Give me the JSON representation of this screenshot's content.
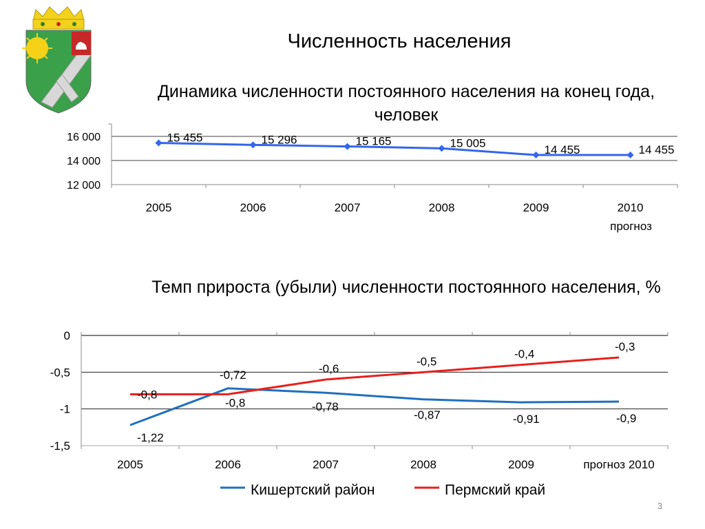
{
  "page": {
    "title": "Численность населения",
    "slide_number": "3"
  },
  "colors": {
    "line_population": "#3366ee",
    "series_district": "#1f6fbf",
    "series_region": "#e8201c",
    "gridline": "#000000",
    "axis": "#888888"
  },
  "chart_data": [
    {
      "type": "line",
      "title": "Динамика численности постоянного населения на конец года, человек",
      "categories": [
        "2005",
        "2006",
        "2007",
        "2008",
        "2009",
        "2010"
      ],
      "category_sublabels": [
        "",
        "",
        "",
        "",
        "",
        "прогноз"
      ],
      "values": [
        15455,
        15296,
        15165,
        15005,
        14455,
        14455
      ],
      "data_labels": [
        "15 455",
        "15 296",
        "15 165",
        "15 005",
        "14 455",
        "14 455"
      ],
      "y_ticks": [
        "16 000",
        "14 000",
        "12 000"
      ],
      "y_tick_values": [
        16000,
        14000,
        12000
      ],
      "ylim": [
        12000,
        16000
      ],
      "marker": "diamond",
      "grid": true,
      "legend": "none"
    },
    {
      "type": "line",
      "title": "Темп прироста (убыли) численности постоянного населения, %",
      "categories": [
        "2005",
        "2006",
        "2007",
        "2008",
        "2009",
        "прогноз 2010"
      ],
      "series": [
        {
          "name": "Кишертский район",
          "values": [
            -1.22,
            -0.72,
            -0.78,
            -0.87,
            -0.91,
            -0.9
          ],
          "labels": [
            "-1,22",
            "-0,72",
            "-0,78",
            "-0,87",
            "-0,91",
            "-0,9"
          ]
        },
        {
          "name": "Пермский край",
          "values": [
            -0.8,
            -0.8,
            -0.6,
            -0.5,
            -0.4,
            -0.3
          ],
          "labels": [
            "-0,8",
            "-0,8",
            "-0,6",
            "-0,5",
            "-0,4",
            "-0,3"
          ]
        }
      ],
      "y_ticks": [
        "0",
        "-0,5",
        "-1",
        "-1,5"
      ],
      "y_tick_values": [
        0,
        -0.5,
        -1,
        -1.5
      ],
      "ylim": [
        -1.5,
        0
      ],
      "grid": true,
      "legend": "bottom"
    }
  ]
}
